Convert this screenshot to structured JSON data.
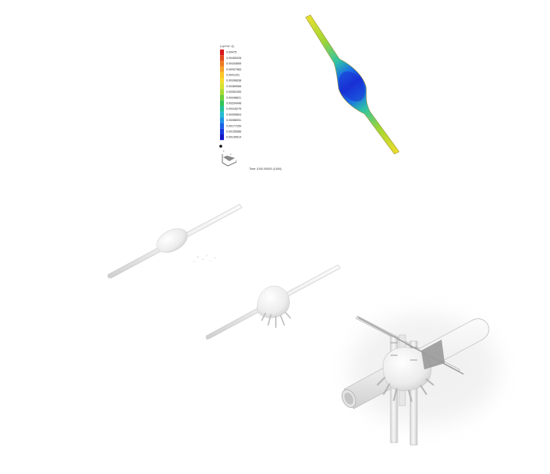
{
  "legend": {
    "title": "u (m^s^-1)",
    "values": [
      "0.00475",
      "0.00455328",
      "0.00434655",
      "0.00437983",
      "0.0041231",
      "0.00396638",
      "0.00385966",
      "0.00352283",
      "0.00348621",
      "0.00334948",
      "0.00316276",
      "0.00305604",
      "0.00286931",
      "0.00177259",
      "0.00155586",
      "0.00139614"
    ],
    "colors": [
      "#d7191c",
      "#e34a1f",
      "#ef7a22",
      "#f6a325",
      "#fcc629",
      "#f5dc2c",
      "#d7e12e",
      "#a9db32",
      "#6ccf3a",
      "#34c45a",
      "#22c29b",
      "#22bcd1",
      "#1d94e6",
      "#1a62e8",
      "#1838df",
      "#1418c8"
    ]
  },
  "axes": {
    "x": "x",
    "y": "y",
    "z": "z"
  },
  "time_label": "Time 1000.00000 (1000)",
  "colors": {
    "model_light": "#f4f4f4",
    "model_mid": "#e2e2e2",
    "model_dark": "#c9c9c9",
    "pipe_outline": "#b5b5b5"
  }
}
